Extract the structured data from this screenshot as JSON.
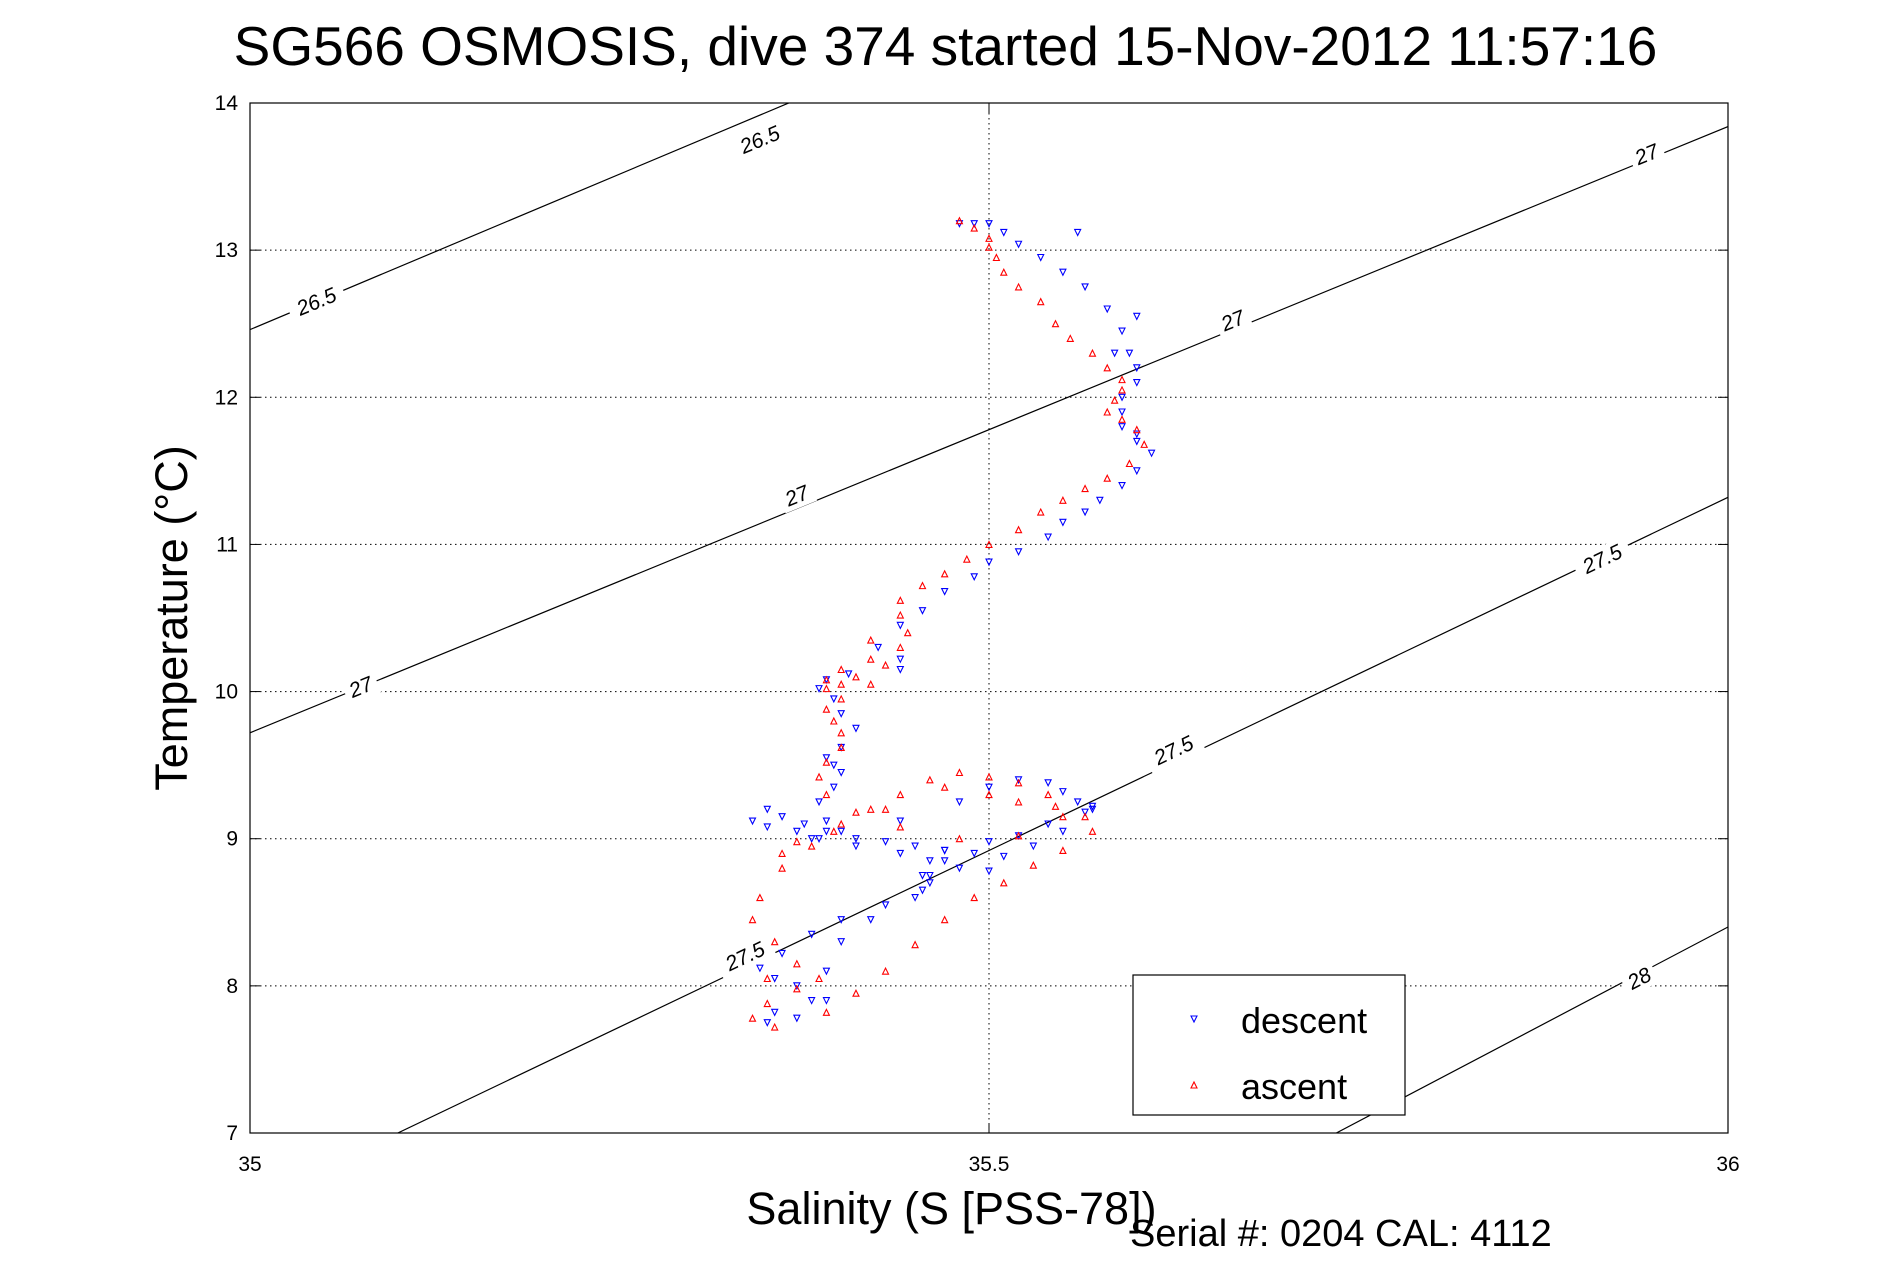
{
  "chart_data": {
    "type": "scatter",
    "title": "SG566 OSMOSIS, dive 374 started 15-Nov-2012 11:57:16",
    "xlabel": "Salinity (S [PSS-78])",
    "ylabel": "Temperature (°C)",
    "footer": "Serial #: 0204  CAL: 4112",
    "xlim": [
      35,
      36
    ],
    "ylim": [
      7,
      14
    ],
    "xticks": [
      35,
      35.5,
      36
    ],
    "xtick_labels": [
      "35",
      "35.5",
      "36"
    ],
    "yticks": [
      7,
      8,
      9,
      10,
      11,
      12,
      13,
      14
    ],
    "ytick_labels": [
      "7",
      "8",
      "9",
      "10",
      "11",
      "12",
      "13",
      "14"
    ],
    "grid": true,
    "legend_position": "bottom-right",
    "contours": [
      {
        "label": "26.5",
        "points": [
          [
            35.0,
            12.46
          ],
          [
            35.4,
            14.15
          ]
        ],
        "labels_at": [
          [
            35.045,
            12.65
          ],
          [
            35.345,
            13.75
          ]
        ]
      },
      {
        "label": "27",
        "points": [
          [
            35.0,
            9.72
          ],
          [
            36.0,
            13.84
          ]
        ],
        "labels_at": [
          [
            35.075,
            10.03
          ],
          [
            35.37,
            11.33
          ],
          [
            35.665,
            12.52
          ],
          [
            35.945,
            13.65
          ]
        ]
      },
      {
        "label": "27.5",
        "points": [
          [
            35.1,
            7.0
          ],
          [
            36.0,
            11.32
          ]
        ],
        "labels_at": [
          [
            35.335,
            8.2
          ],
          [
            35.625,
            9.6
          ],
          [
            35.915,
            10.9
          ]
        ]
      },
      {
        "label": "28",
        "points": [
          [
            35.735,
            7.0
          ],
          [
            36.0,
            8.4
          ]
        ],
        "labels_at": [
          [
            35.94,
            8.05
          ]
        ]
      }
    ],
    "series": [
      {
        "name": "descent",
        "color": "#0000ff",
        "marker": "triangle-down",
        "x": [
          35.48,
          35.49,
          35.5,
          35.51,
          35.52,
          35.535,
          35.55,
          35.565,
          35.58,
          35.59,
          35.595,
          35.6,
          35.6,
          35.59,
          35.59,
          35.59,
          35.6,
          35.6,
          35.61,
          35.6,
          35.59,
          35.575,
          35.565,
          35.55,
          35.54,
          35.52,
          35.5,
          35.49,
          35.47,
          35.455,
          35.44,
          35.425,
          35.44,
          35.44,
          35.405,
          35.39,
          35.385,
          35.395,
          35.4,
          35.41,
          35.4,
          35.39,
          35.395,
          35.4,
          35.395,
          35.385,
          35.39,
          35.38,
          35.4,
          35.44,
          35.48,
          35.5,
          35.52,
          35.54,
          35.55,
          35.56,
          35.57,
          35.54,
          35.52,
          35.5,
          35.47,
          35.46,
          35.455,
          35.46,
          35.455,
          35.45,
          35.43,
          35.4,
          35.38,
          35.36,
          35.345,
          35.355,
          35.37,
          35.39,
          35.355,
          35.35,
          35.37,
          35.38,
          35.39,
          35.4,
          35.42,
          35.46,
          35.5,
          35.48,
          35.47,
          35.44,
          35.41,
          35.385,
          35.37,
          35.35,
          35.34,
          35.35,
          35.36,
          35.375,
          35.39,
          35.41,
          35.43,
          35.45,
          35.47,
          35.49,
          35.51,
          35.53,
          35.55,
          35.565,
          35.57,
          35.6,
          35.56,
          35.585
        ],
        "y": [
          13.18,
          13.18,
          13.18,
          13.12,
          13.04,
          12.95,
          12.85,
          12.75,
          12.6,
          12.45,
          12.3,
          12.2,
          12.1,
          12.0,
          11.9,
          11.8,
          11.75,
          11.7,
          11.62,
          11.5,
          11.4,
          11.3,
          11.22,
          11.15,
          11.05,
          10.95,
          10.88,
          10.78,
          10.68,
          10.55,
          10.45,
          10.3,
          10.22,
          10.15,
          10.12,
          10.08,
          10.02,
          9.95,
          9.85,
          9.75,
          9.62,
          9.55,
          9.5,
          9.45,
          9.35,
          9.25,
          9.12,
          9.0,
          9.05,
          9.12,
          9.25,
          9.35,
          9.4,
          9.38,
          9.32,
          9.25,
          9.2,
          9.1,
          9.02,
          8.98,
          8.92,
          8.85,
          8.75,
          8.7,
          8.65,
          8.6,
          8.55,
          8.45,
          8.35,
          8.22,
          8.12,
          8.05,
          8.0,
          7.9,
          7.82,
          7.75,
          7.78,
          7.9,
          8.1,
          8.3,
          8.45,
          8.75,
          8.78,
          8.8,
          8.85,
          8.9,
          8.95,
          9.0,
          9.05,
          9.08,
          9.12,
          9.2,
          9.15,
          9.1,
          9.05,
          9.0,
          8.98,
          8.95,
          8.92,
          8.9,
          8.88,
          8.95,
          9.05,
          9.18,
          9.22,
          12.55,
          13.12,
          12.3
        ]
      },
      {
        "name": "ascent",
        "color": "#ff0000",
        "marker": "triangle-up",
        "x": [
          35.48,
          35.49,
          35.5,
          35.5,
          35.505,
          35.51,
          35.52,
          35.535,
          35.545,
          35.555,
          35.57,
          35.58,
          35.59,
          35.59,
          35.585,
          35.58,
          35.59,
          35.6,
          35.605,
          35.595,
          35.58,
          35.565,
          35.55,
          35.535,
          35.52,
          35.5,
          35.485,
          35.47,
          35.455,
          35.44,
          35.44,
          35.445,
          35.44,
          35.42,
          35.4,
          35.39,
          35.39,
          35.4,
          35.41,
          35.43,
          35.42,
          35.4,
          35.39,
          35.395,
          35.4,
          35.4,
          35.39,
          35.385,
          35.39,
          35.41,
          35.44,
          35.48,
          35.52,
          35.55,
          35.54,
          35.52,
          35.5,
          35.48,
          35.46,
          35.44,
          35.42,
          35.4,
          35.38,
          35.36,
          35.345,
          35.34,
          35.355,
          35.37,
          35.385,
          35.37,
          35.35,
          35.34,
          35.355,
          35.39,
          35.41,
          35.43,
          35.45,
          35.47,
          35.49,
          35.51,
          35.53,
          35.55,
          35.57,
          35.565,
          35.545,
          35.52,
          35.5,
          35.47,
          35.43,
          35.395,
          35.37,
          35.36,
          35.42,
          35.35
        ],
        "y": [
          13.2,
          13.15,
          13.08,
          13.02,
          12.95,
          12.85,
          12.75,
          12.65,
          12.5,
          12.4,
          12.3,
          12.2,
          12.12,
          12.05,
          11.98,
          11.9,
          11.85,
          11.78,
          11.68,
          11.55,
          11.45,
          11.38,
          11.3,
          11.22,
          11.1,
          11.0,
          10.9,
          10.8,
          10.72,
          10.62,
          10.52,
          10.4,
          10.3,
          10.22,
          10.15,
          10.08,
          10.02,
          10.05,
          10.1,
          10.18,
          10.05,
          9.95,
          9.88,
          9.8,
          9.72,
          9.62,
          9.52,
          9.42,
          9.3,
          9.18,
          9.08,
          9.0,
          9.02,
          9.15,
          9.3,
          9.38,
          9.42,
          9.45,
          9.4,
          9.3,
          9.2,
          9.1,
          8.95,
          8.8,
          8.6,
          8.45,
          8.3,
          8.15,
          8.05,
          7.98,
          7.88,
          7.78,
          7.72,
          7.82,
          7.95,
          8.1,
          8.28,
          8.45,
          8.6,
          8.7,
          8.82,
          8.92,
          9.05,
          9.15,
          9.22,
          9.25,
          9.3,
          9.35,
          9.2,
          9.05,
          8.98,
          8.9,
          10.35,
          8.05
        ]
      }
    ],
    "legend": [
      "descent",
      "ascent"
    ]
  }
}
